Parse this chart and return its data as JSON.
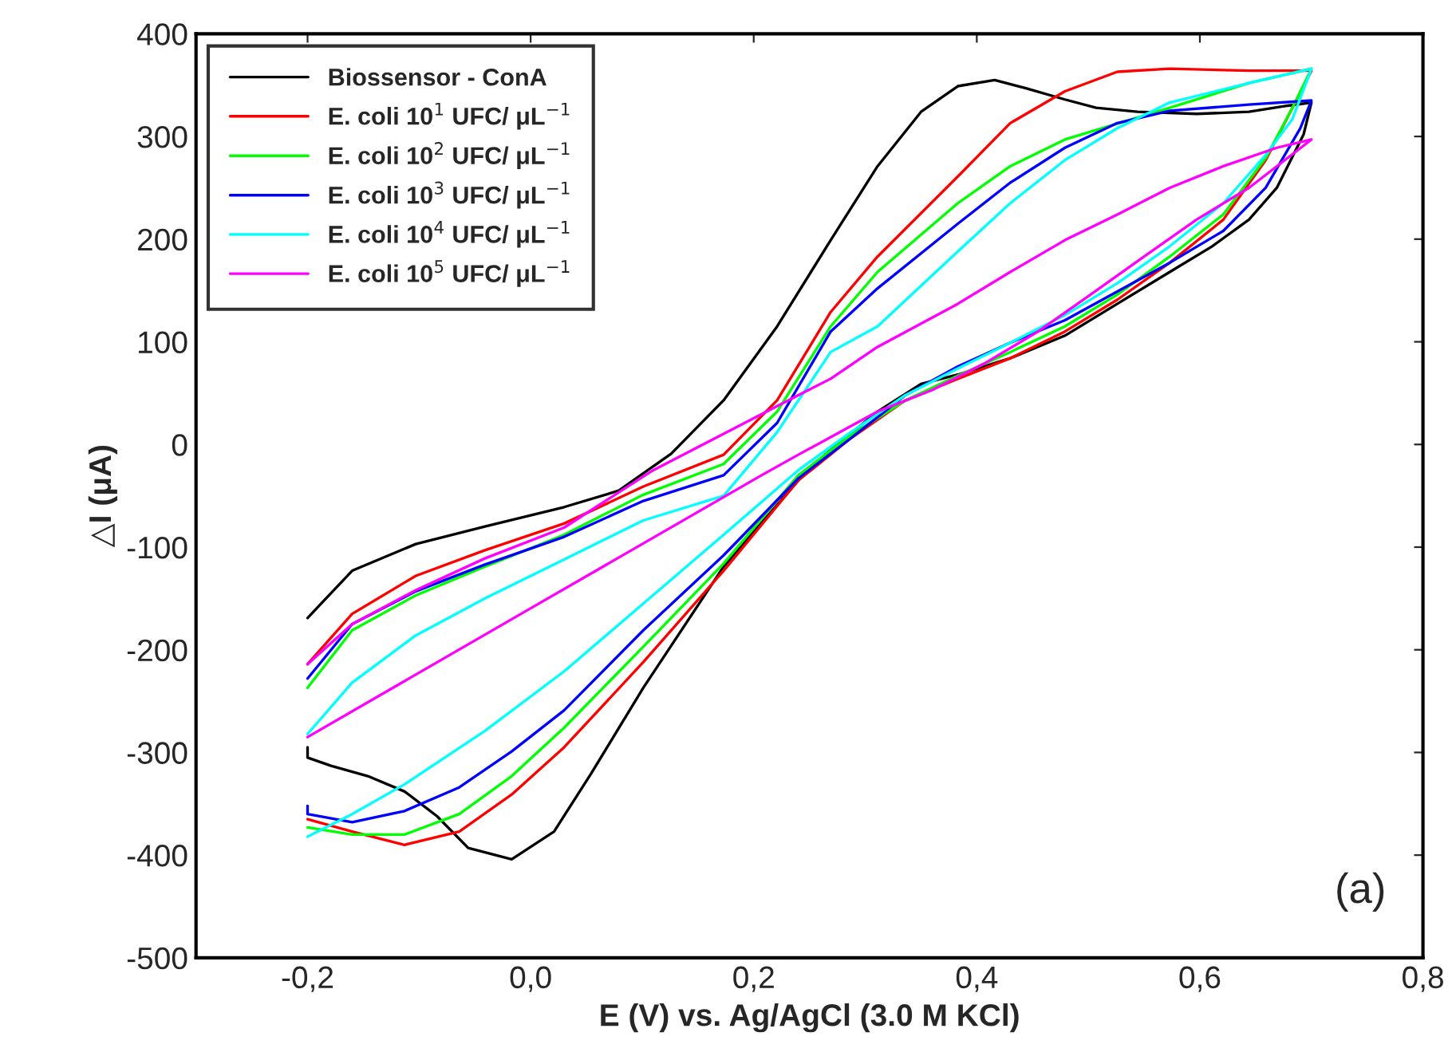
{
  "chart_data": {
    "type": "line",
    "xlabel": "E (V) vs. Ag/AgCl (3.0 M KCl)",
    "ylabel": "△I (μA)",
    "annotations": [
      "(a)"
    ],
    "xlim": [
      -0.3,
      0.8
    ],
    "ylim": [
      -500,
      400
    ],
    "xticks": [
      {
        "value": -0.2,
        "label": "-0,2"
      },
      {
        "value": 0.0,
        "label": "0,0"
      },
      {
        "value": 0.2,
        "label": "0,2"
      },
      {
        "value": 0.4,
        "label": "0,4"
      },
      {
        "value": 0.6,
        "label": "0,6"
      },
      {
        "value": 0.8,
        "label": "0,8"
      }
    ],
    "yticks": [
      -500,
      -400,
      -300,
      -200,
      -100,
      0,
      100,
      200,
      300,
      400
    ],
    "grid": false,
    "legend": "top left",
    "line_style": "solid",
    "marker": "none",
    "series": [
      {
        "name": "Biossensor - ConA",
        "color": "#000000",
        "x": [
          -0.2,
          -0.16,
          -0.103,
          -0.041,
          0.03,
          0.079,
          0.126,
          0.173,
          0.221,
          0.269,
          0.311,
          0.35,
          0.383,
          0.416,
          0.444,
          0.479,
          0.507,
          0.544,
          0.597,
          0.644,
          0.679,
          0.7,
          0.693,
          0.669,
          0.644,
          0.611,
          0.573,
          0.526,
          0.479,
          0.43,
          0.383,
          0.35,
          0.311,
          0.264,
          0.24,
          0.173,
          0.101,
          0.054,
          0.021,
          -0.017,
          -0.056,
          -0.084,
          -0.113,
          -0.146,
          -0.179,
          -0.2,
          -0.2
        ],
        "values": [
          -169,
          -123,
          -97,
          -80,
          -61,
          -45,
          -9,
          43,
          115,
          199,
          271,
          324,
          349,
          355,
          347,
          336,
          328,
          324,
          322,
          324,
          330,
          333,
          302,
          250,
          219,
          193,
          168,
          137,
          106,
          84,
          68,
          59,
          32,
          -10,
          -35,
          -119,
          -237,
          -321,
          -377,
          -404,
          -393,
          -362,
          -338,
          -323,
          -313,
          -305,
          -295
        ]
      },
      {
        "name": "E. coli 10$^{1}$ UFC/ μL$^{−1}$",
        "color": "#ff0000",
        "x": [
          -0.2,
          -0.16,
          -0.103,
          -0.041,
          0.03,
          0.101,
          0.173,
          0.221,
          0.269,
          0.311,
          0.383,
          0.43,
          0.479,
          0.526,
          0.573,
          0.644,
          0.7,
          0.683,
          0.659,
          0.621,
          0.573,
          0.526,
          0.479,
          0.43,
          0.383,
          0.336,
          0.287,
          0.24,
          0.173,
          0.101,
          0.03,
          -0.017,
          -0.064,
          -0.113,
          -0.16,
          -0.2
        ],
        "values": [
          -214,
          -165,
          -128,
          -103,
          -77,
          -41,
          -10,
          43,
          129,
          183,
          261,
          313,
          344,
          363,
          366,
          364,
          364,
          328,
          277,
          219,
          177,
          141,
          110,
          84,
          64,
          43,
          6,
          -35,
          -123,
          -212,
          -295,
          -341,
          -377,
          -390,
          -377,
          -365
        ]
      },
      {
        "name": "E. coli 10$^{2}$ UFC/ μL$^{−1}$",
        "color": "#00ff00",
        "x": [
          -0.2,
          -0.16,
          -0.103,
          -0.041,
          0.03,
          0.101,
          0.173,
          0.221,
          0.269,
          0.311,
          0.383,
          0.43,
          0.479,
          0.573,
          0.644,
          0.7,
          0.683,
          0.659,
          0.621,
          0.573,
          0.526,
          0.479,
          0.43,
          0.383,
          0.336,
          0.287,
          0.24,
          0.173,
          0.101,
          0.03,
          -0.017,
          -0.064,
          -0.113,
          -0.16,
          -0.2
        ],
        "values": [
          -237,
          -181,
          -147,
          -119,
          -88,
          -49,
          -19,
          32,
          115,
          168,
          235,
          271,
          297,
          328,
          352,
          366,
          328,
          279,
          224,
          183,
          146,
          115,
          90,
          67,
          43,
          9,
          -30,
          -116,
          -197,
          -276,
          -323,
          -360,
          -380,
          -380,
          -373
        ]
      },
      {
        "name": "E. coli 10$^{3}$ UFC/ μL$^{−1}$",
        "color": "#0000ff",
        "x": [
          -0.2,
          -0.16,
          -0.103,
          -0.041,
          0.03,
          0.101,
          0.173,
          0.221,
          0.269,
          0.311,
          0.383,
          0.43,
          0.479,
          0.526,
          0.573,
          0.644,
          0.7,
          0.69,
          0.659,
          0.621,
          0.573,
          0.526,
          0.479,
          0.43,
          0.383,
          0.336,
          0.287,
          0.24,
          0.173,
          0.101,
          0.03,
          -0.017,
          -0.064,
          -0.113,
          -0.16,
          -0.2,
          -0.2
        ],
        "values": [
          -228,
          -175,
          -143,
          -117,
          -90,
          -55,
          -30,
          21,
          110,
          152,
          215,
          255,
          289,
          313,
          325,
          331,
          335,
          308,
          250,
          208,
          177,
          149,
          121,
          99,
          76,
          48,
          6,
          -33,
          -108,
          -181,
          -259,
          -299,
          -334,
          -357,
          -368,
          -360,
          -352
        ]
      },
      {
        "name": "E. coli 10$^{4}$ UFC/ μL$^{−1}$",
        "color": "#00ffff",
        "x": [
          -0.2,
          -0.16,
          -0.103,
          -0.041,
          0.03,
          0.101,
          0.173,
          0.221,
          0.269,
          0.311,
          0.383,
          0.43,
          0.479,
          0.526,
          0.573,
          0.644,
          0.7,
          0.683,
          0.659,
          0.621,
          0.573,
          0.526,
          0.479,
          0.43,
          0.383,
          0.336,
          0.287,
          0.24,
          0.173,
          0.101,
          0.03,
          -0.041,
          -0.113,
          -0.16,
          -0.2
        ],
        "values": [
          -282,
          -232,
          -186,
          -150,
          -112,
          -74,
          -50,
          12,
          90,
          115,
          188,
          235,
          277,
          308,
          333,
          352,
          366,
          317,
          282,
          235,
          193,
          157,
          126,
          99,
          74,
          48,
          12,
          -25,
          -88,
          -155,
          -221,
          -279,
          -331,
          -360,
          -382
        ]
      },
      {
        "name": "E. coli 10$^{5}$ UFC/ μL$^{−1}$",
        "color": "#ff00ff",
        "x": [
          -0.2,
          -0.16,
          -0.103,
          -0.041,
          0.03,
          0.11,
          0.24,
          0.269,
          0.311,
          0.383,
          0.43,
          0.479,
          0.526,
          0.573,
          0.621,
          0.669,
          0.7,
          0.644,
          0.597,
          0.55,
          0.502,
          0.455,
          0.407,
          0.36,
          0.311,
          0.24,
          0.207,
          0.001,
          -0.2
        ],
        "values": [
          -214,
          -175,
          -142,
          -111,
          -81,
          -25,
          48,
          64,
          95,
          137,
          168,
          199,
          224,
          250,
          271,
          289,
          297,
          250,
          219,
          183,
          146,
          110,
          79,
          53,
          32,
          -10,
          -30,
          -159,
          -285
        ]
      }
    ]
  }
}
